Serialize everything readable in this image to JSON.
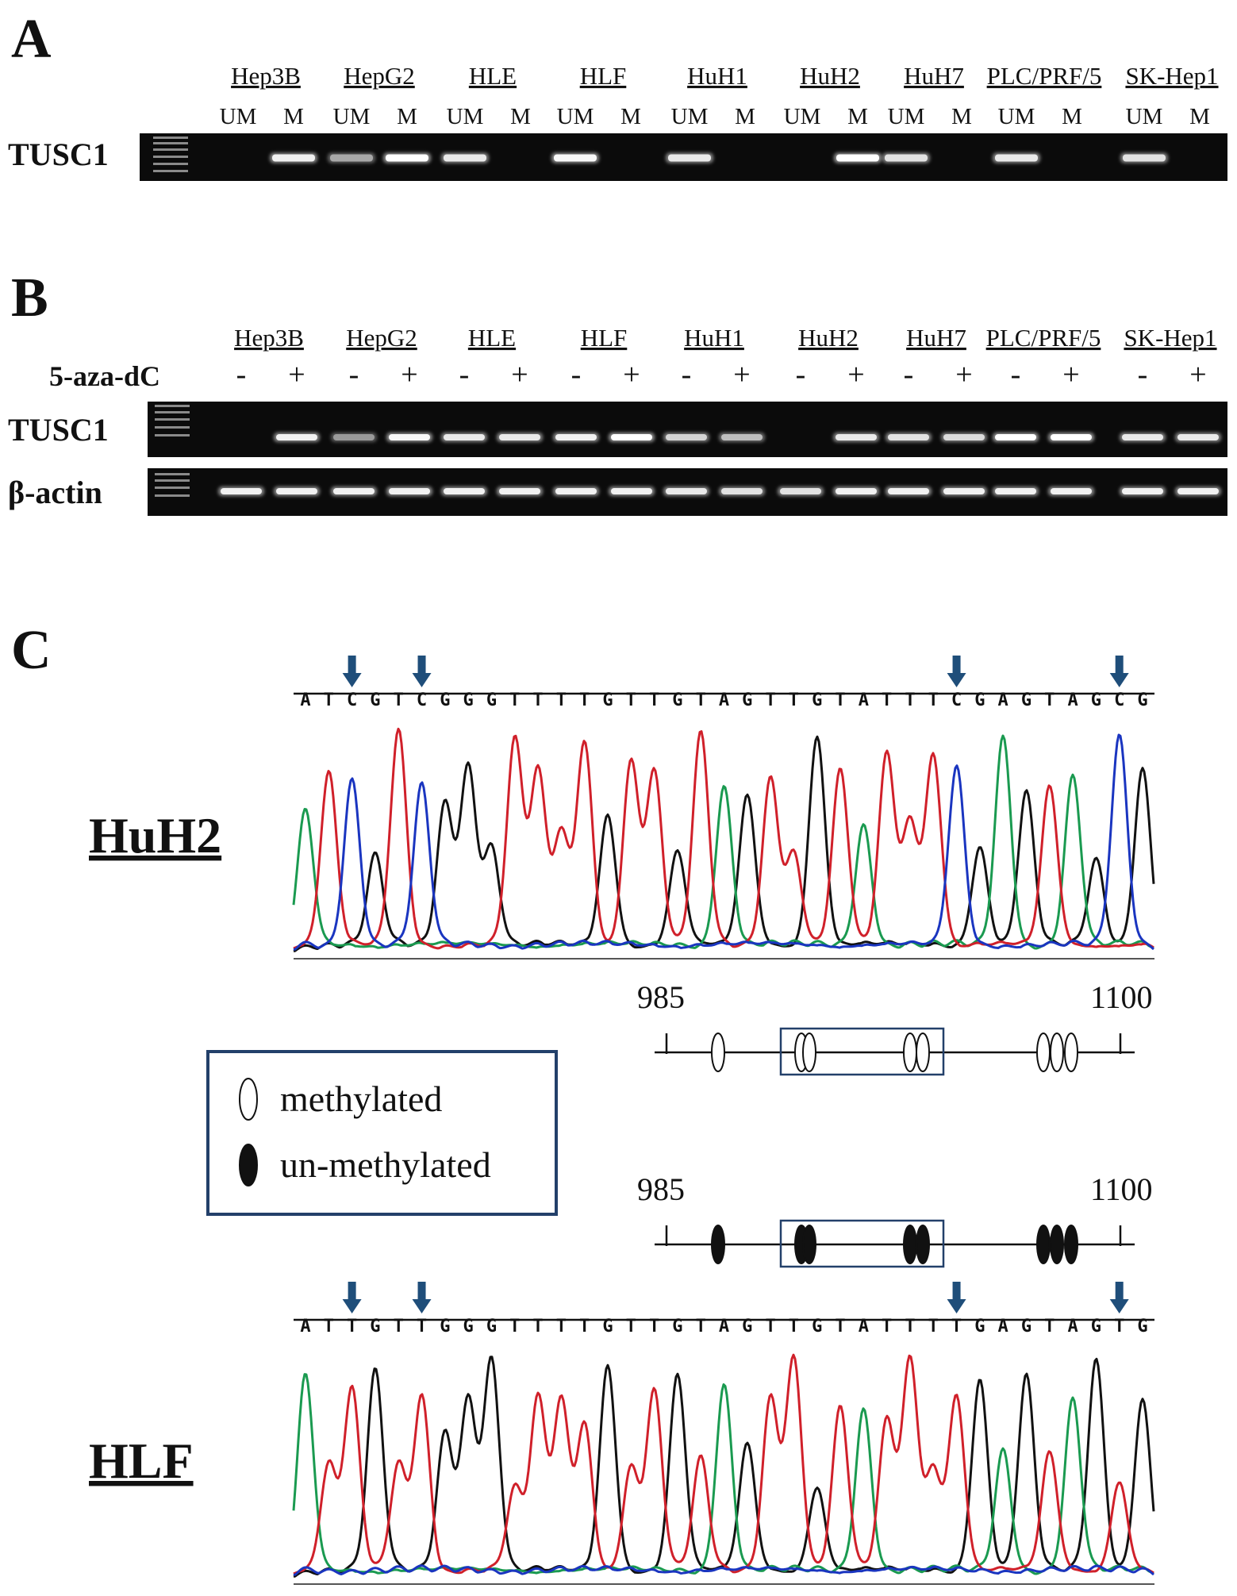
{
  "panels": [
    "A",
    "B",
    "C"
  ],
  "cell_lines": [
    "Hep3B",
    "HepG2",
    "HLE",
    "HLF",
    "HuH1",
    "HuH2",
    "HuH7",
    "PLC/PRF/5",
    "SK-Hep1"
  ],
  "panel_a": {
    "row_label": "TUSC1",
    "lane_labels": [
      "UM",
      "M"
    ],
    "bands": [
      {
        "um": 0,
        "m": 0.9
      },
      {
        "um": 0.4,
        "m": 1.0
      },
      {
        "um": 0.85,
        "m": 0
      },
      {
        "um": 0.95,
        "m": 0
      },
      {
        "um": 0.85,
        "m": 0
      },
      {
        "um": 0,
        "m": 1.0
      },
      {
        "um": 0.8,
        "m": 0
      },
      {
        "um": 0.85,
        "m": 0
      },
      {
        "um": 0.8,
        "m": 0
      }
    ]
  },
  "panel_b": {
    "treatment_label": "5-aza-dC",
    "treatment_states": [
      "-",
      "+"
    ],
    "row_labels": [
      "TUSC1",
      "β-actin"
    ],
    "tusc1": [
      0,
      0.9,
      0.3,
      0.95,
      0.85,
      0.85,
      0.9,
      1.0,
      0.7,
      0.55,
      0,
      0.85,
      0.8,
      0.75,
      1.0,
      1.0,
      0.85,
      0.85
    ],
    "actin": [
      0.9,
      0.9,
      0.9,
      0.9,
      0.9,
      0.9,
      0.9,
      0.9,
      0.85,
      0.8,
      0.8,
      0.9,
      0.9,
      0.9,
      0.9,
      0.9,
      0.9,
      0.9
    ]
  },
  "panel_c": {
    "samples": [
      {
        "name": "HuH2",
        "sequence": "ATCGTCGGGTTTTGTTGTAGTTGTATTTCGAGTAGCG",
        "arrow_positions": [
          2,
          5,
          28,
          35
        ]
      },
      {
        "name": "HLF",
        "sequence": "ATTGTTGGGTTTTGTTGTAGTTGTATTTTGAGTAGTG",
        "arrow_positions": [
          2,
          5,
          28,
          35
        ]
      }
    ],
    "region": {
      "start": "985",
      "end": "1100"
    },
    "cpg_sites": 8,
    "legend": {
      "methylated": "methylated",
      "unmethylated": "un-methylated"
    },
    "base_colors": {
      "A": "#1a9a50",
      "T": "#d0202a",
      "G": "#111111",
      "C": "#1a35c0"
    },
    "arrow_color": "#1f4e7a"
  }
}
